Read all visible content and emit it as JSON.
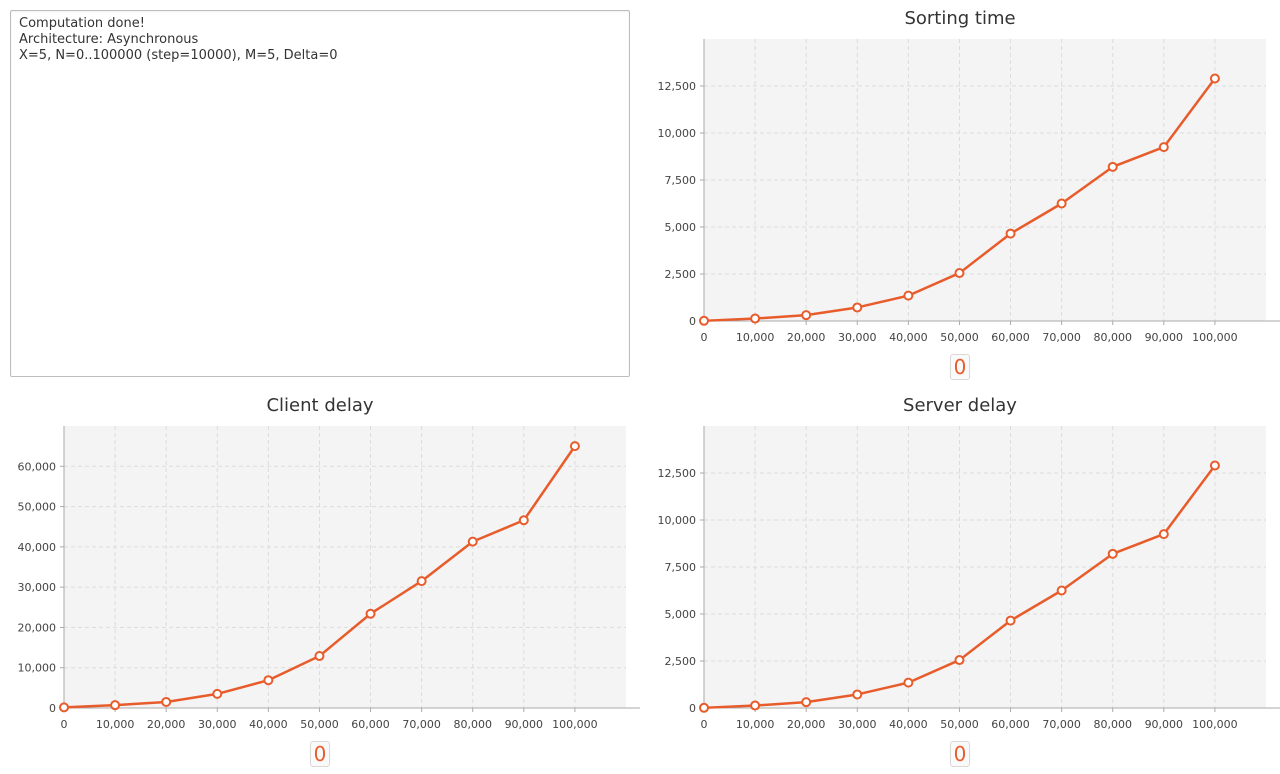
{
  "log": {
    "lines": [
      "Computation done!",
      "Architecture: Asynchronous",
      "X=5, N=0..100000 (step=10000), M=5, Delta=0"
    ]
  },
  "colors": {
    "series": "#e85c2c",
    "plot_bg": "#f4f4f4",
    "grid": "#dcdcdc",
    "axis": "#aaaaaa"
  },
  "chart_data": [
    {
      "id": "sorting",
      "type": "line",
      "title": "Sorting time",
      "xlabel": "",
      "ylabel": "",
      "x": [
        0,
        10000,
        20000,
        30000,
        40000,
        50000,
        60000,
        70000,
        80000,
        90000,
        100000
      ],
      "series": [
        {
          "values": [
            10,
            130,
            310,
            720,
            1350,
            2550,
            4650,
            6250,
            8200,
            9250,
            12900
          ]
        }
      ],
      "xlim": [
        0,
        110000
      ],
      "ylim": [
        0,
        15000
      ],
      "xticks": [
        0,
        10000,
        20000,
        30000,
        40000,
        50000,
        60000,
        70000,
        80000,
        90000,
        100000
      ],
      "yticks": [
        0,
        2500,
        5000,
        7500,
        10000,
        12500
      ],
      "xtick_labels": [
        "0",
        "10,000",
        "20,000",
        "30,000",
        "40,000",
        "50,000",
        "60,000",
        "70,000",
        "80,000",
        "90,000",
        "100,000"
      ],
      "ytick_labels": [
        "0",
        "2,500",
        "5,000",
        "7,500",
        "10,000",
        "12,500"
      ],
      "legend_text": "0",
      "grid": true
    },
    {
      "id": "client",
      "type": "line",
      "title": "Client delay",
      "xlabel": "",
      "ylabel": "",
      "x": [
        0,
        10000,
        20000,
        30000,
        40000,
        50000,
        60000,
        70000,
        80000,
        90000,
        100000
      ],
      "series": [
        {
          "values": [
            150,
            700,
            1500,
            3500,
            6900,
            12900,
            23400,
            31500,
            41300,
            46600,
            65000
          ]
        }
      ],
      "xlim": [
        0,
        110000
      ],
      "ylim": [
        0,
        70000
      ],
      "xticks": [
        0,
        10000,
        20000,
        30000,
        40000,
        50000,
        60000,
        70000,
        80000,
        90000,
        100000
      ],
      "yticks": [
        0,
        10000,
        20000,
        30000,
        40000,
        50000,
        60000
      ],
      "xtick_labels": [
        "0",
        "10,000",
        "20,000",
        "30,000",
        "40,000",
        "50,000",
        "60,000",
        "70,000",
        "80,000",
        "90,000",
        "100,000"
      ],
      "ytick_labels": [
        "0",
        "10,000",
        "20,000",
        "30,000",
        "40,000",
        "50,000",
        "60,000"
      ],
      "legend_text": "0",
      "grid": true
    },
    {
      "id": "server",
      "type": "line",
      "title": "Server delay",
      "xlabel": "",
      "ylabel": "",
      "x": [
        0,
        10000,
        20000,
        30000,
        40000,
        50000,
        60000,
        70000,
        80000,
        90000,
        100000
      ],
      "series": [
        {
          "values": [
            10,
            130,
            310,
            720,
            1350,
            2550,
            4650,
            6250,
            8200,
            9250,
            12900
          ]
        }
      ],
      "xlim": [
        0,
        110000
      ],
      "ylim": [
        0,
        15000
      ],
      "xticks": [
        0,
        10000,
        20000,
        30000,
        40000,
        50000,
        60000,
        70000,
        80000,
        90000,
        100000
      ],
      "yticks": [
        0,
        2500,
        5000,
        7500,
        10000,
        12500
      ],
      "xtick_labels": [
        "0",
        "10,000",
        "20,000",
        "30,000",
        "40,000",
        "50,000",
        "60,000",
        "70,000",
        "80,000",
        "90,000",
        "100,000"
      ],
      "ytick_labels": [
        "0",
        "2,500",
        "5,000",
        "7,500",
        "10,000",
        "12,500"
      ],
      "legend_text": "0",
      "grid": true
    }
  ]
}
